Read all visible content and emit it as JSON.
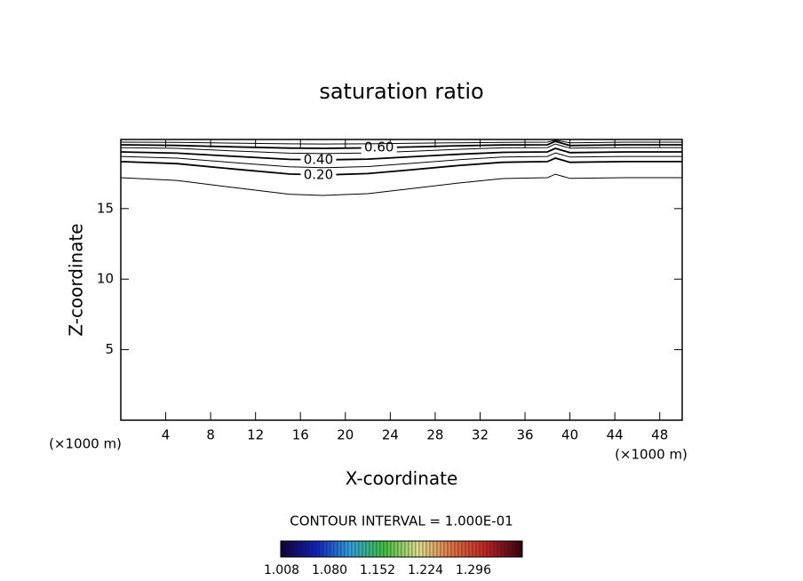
{
  "chart_data": {
    "type": "contour",
    "title": "saturation ratio",
    "xlabel": "X-coordinate",
    "ylabel": "Z-coordinate",
    "x_unit_label": "(×1000 m)",
    "xlim": [
      0,
      50
    ],
    "ylim": [
      0,
      19.9
    ],
    "xticks": [
      4,
      8,
      12,
      16,
      20,
      24,
      28,
      32,
      36,
      40,
      44,
      48
    ],
    "yticks": [
      5,
      10,
      15
    ],
    "line_color": "#000000",
    "x": [
      0,
      5,
      10,
      15,
      18,
      22,
      26,
      30,
      34,
      38,
      38.7,
      40,
      45,
      50
    ],
    "contours": [
      {
        "level": 0.1,
        "z": [
          17.19,
          17.0,
          16.5,
          16.02,
          15.93,
          16.06,
          16.43,
          16.81,
          17.13,
          17.19,
          17.44,
          17.14,
          17.19,
          17.19
        ]
      },
      {
        "level": 0.2,
        "label": "0.20",
        "z": [
          18.33,
          18.19,
          17.81,
          17.45,
          17.38,
          17.48,
          17.76,
          18.05,
          18.28,
          18.33,
          18.58,
          18.28,
          18.33,
          18.33
        ]
      },
      {
        "level": 0.3,
        "z": [
          18.7,
          18.58,
          18.26,
          17.96,
          17.9,
          17.98,
          18.22,
          18.46,
          18.66,
          18.7,
          18.95,
          18.65,
          18.7,
          18.7
        ]
      },
      {
        "level": 0.4,
        "label": "0.40",
        "z": [
          19.02,
          18.93,
          18.71,
          18.49,
          18.45,
          18.51,
          18.68,
          18.85,
          18.99,
          19.02,
          19.27,
          18.97,
          19.02,
          19.02
        ]
      },
      {
        "level": 0.5,
        "z": [
          19.33,
          19.27,
          19.09,
          18.93,
          18.9,
          18.94,
          19.07,
          19.2,
          19.31,
          19.33,
          19.58,
          19.28,
          19.33,
          19.33
        ]
      },
      {
        "level": 0.6,
        "label": "0.60",
        "z": [
          19.52,
          19.48,
          19.38,
          19.29,
          19.27,
          19.3,
          19.37,
          19.45,
          19.51,
          19.52,
          19.77,
          19.47,
          19.52,
          19.52
        ]
      },
      {
        "level": 0.7,
        "z": [
          19.71,
          19.69,
          19.64,
          19.59,
          19.58,
          19.59,
          19.63,
          19.67,
          19.7,
          19.71,
          19.85,
          19.66,
          19.71,
          19.71
        ]
      }
    ],
    "contour_interval_text": "CONTOUR INTERVAL = 1.000E-01",
    "colorbar": {
      "lim": [
        1.008,
        1.3707
      ],
      "ticks": [
        1.008,
        {
          "value": 1.08,
          "label": "1.080"
        },
        1.152,
        1.224,
        1.296
      ],
      "colors": [
        "#10003a",
        "#1020c0",
        "#30a0e0",
        "#40c040",
        "#e0e090",
        "#e07040",
        "#c02020",
        "#400010"
      ]
    }
  }
}
